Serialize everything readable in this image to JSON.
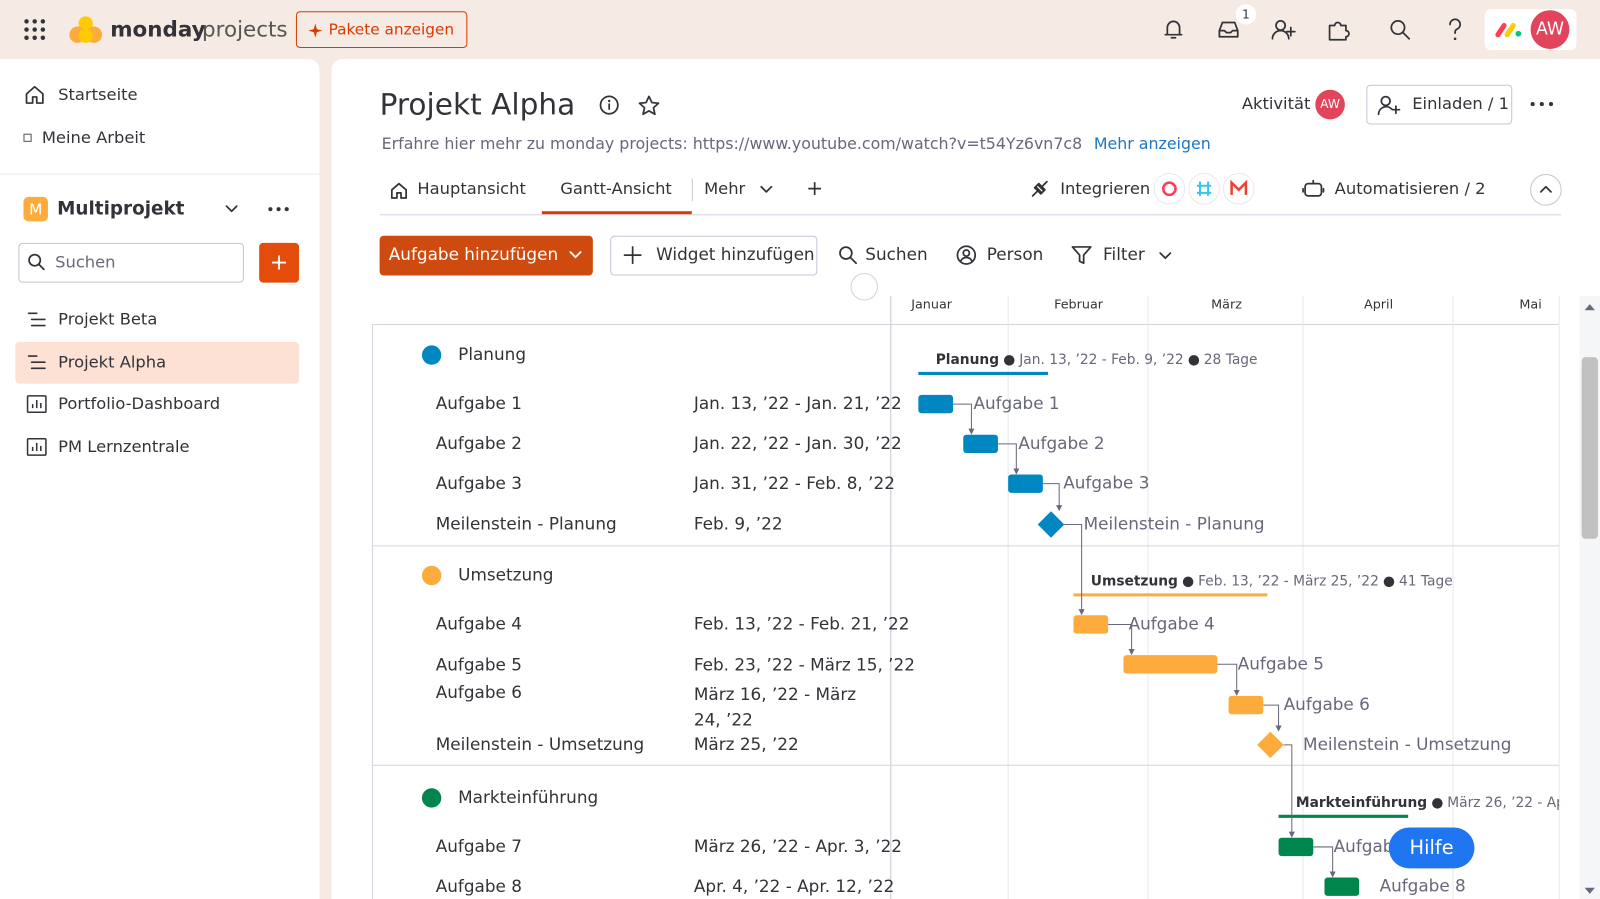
{
  "topbar": {
    "brand_bold": "monday",
    "brand_light": "projects",
    "upgrade_button": "Pakete anzeigen",
    "inbox_badge": "1",
    "avatar": "AW"
  },
  "sidebar": {
    "nav": [
      "Startseite",
      "Meine Arbeit"
    ],
    "workspace": {
      "icon": "M",
      "name": "Multiprojekt"
    },
    "search_placeholder": "Suchen",
    "add_button": "+",
    "items": [
      "Projekt Beta",
      "Projekt Alpha",
      "Portfolio-Dashboard",
      "PM Lernzentrale"
    ]
  },
  "header": {
    "title": "Projekt Alpha",
    "description": "Erfahre hier mehr zu monday projects: https://www.youtube.com/watch?v=t54Yz6vn7c8",
    "more_link": "Mehr anzeigen",
    "activity": "Aktivität",
    "activity_avatar": "AW",
    "invite": "Einladen / 1",
    "tabs": [
      "Hauptansicht",
      "Gantt-Ansicht",
      "Mehr"
    ],
    "add_tab": "+",
    "integrate": "Integrieren",
    "automate": "Automatisieren / 2"
  },
  "toolbar": {
    "add_task": "Aufgabe hinzufügen",
    "add_widget": "Widget hinzufügen",
    "search": "Suchen",
    "person": "Person",
    "filter": "Filter"
  },
  "gantt": {
    "months": [
      "Januar",
      "Februar",
      "März",
      "April",
      "Mai"
    ],
    "groups": [
      {
        "name": "Planung",
        "color": "#0086c0",
        "summary": {
          "range": "Jan. 13, ’22 - Feb. 9, ’22",
          "duration": "28 Tage"
        },
        "tasks": [
          {
            "name": "Aufgabe 1",
            "dates": "Jan. 13, ’22 - Jan. 21, ’22"
          },
          {
            "name": "Aufgabe 2",
            "dates": "Jan. 22, ’22 - Jan. 30, ’22"
          },
          {
            "name": "Aufgabe 3",
            "dates": "Jan. 31, ’22 - Feb. 8, ’22"
          },
          {
            "name": "Meilenstein - Planung",
            "dates": "Feb. 9, ’22"
          }
        ]
      },
      {
        "name": "Umsetzung",
        "color": "#fdab3d",
        "summary": {
          "range": "Feb. 13, ’22 - März 25, ’22",
          "duration": "41 Tage"
        },
        "tasks": [
          {
            "name": "Aufgabe 4",
            "dates": "Feb. 13, ’22 - Feb. 21, ’22"
          },
          {
            "name": "Aufgabe 5",
            "dates": "Feb. 23, ’22 - März 15, ’22"
          },
          {
            "name": "Aufgabe 6",
            "dates": "März 16, ’22 - März 24, ’22"
          },
          {
            "name": "Meilenstein - Umsetzung",
            "dates": "März 25, ’22"
          }
        ]
      },
      {
        "name": "Markteinführung",
        "color": "#00854d",
        "summary": {
          "range": "März 26, ’22 - Apr"
        },
        "tasks": [
          {
            "name": "Aufgabe 7",
            "dates": "März 26, ’22 - Apr. 3, ’22"
          },
          {
            "name": "Aufgabe 8",
            "dates": "Apr. 4, ’22 - Apr. 12, ’22"
          }
        ]
      }
    ]
  },
  "help_button": "Hilfe"
}
